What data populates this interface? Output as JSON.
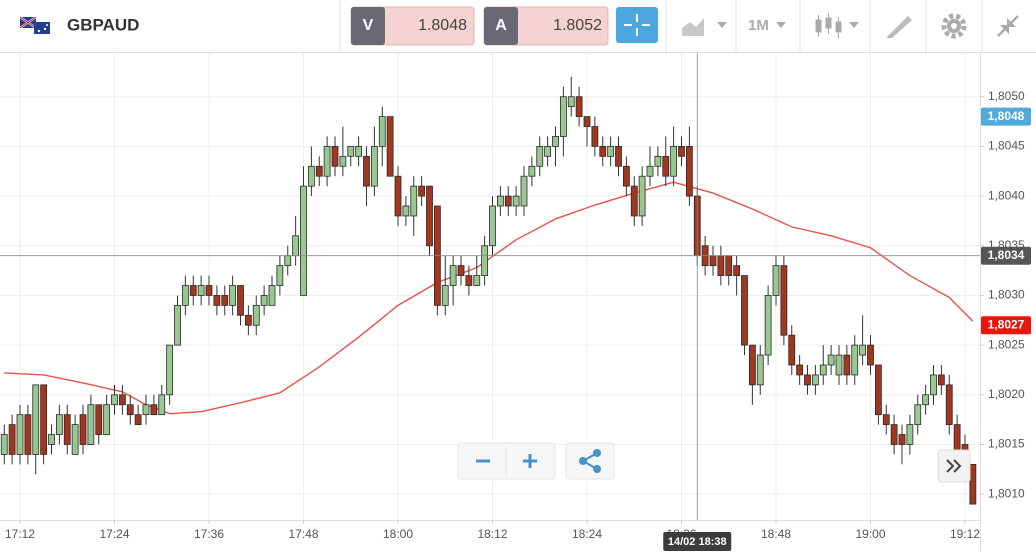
{
  "toolbar": {
    "symbol": "GBPAUD",
    "bid_label": "V",
    "bid": "1.8048",
    "ask_label": "A",
    "ask": "1.8052",
    "timeframe": "1M"
  },
  "chart_data": {
    "type": "candlestick",
    "categories": [
      "17:10",
      "17:11",
      "17:12",
      "17:13",
      "17:14",
      "17:15",
      "17:16",
      "17:17",
      "17:18",
      "17:19",
      "17:20",
      "17:21",
      "17:22",
      "17:23",
      "17:24",
      "17:25",
      "17:26",
      "17:27",
      "17:28",
      "17:29",
      "17:30",
      "17:31",
      "17:32",
      "17:33",
      "17:34",
      "17:35",
      "17:36",
      "17:37",
      "17:38",
      "17:39",
      "17:40",
      "17:41",
      "17:42",
      "17:43",
      "17:44",
      "17:45",
      "17:46",
      "17:47",
      "17:48",
      "17:49",
      "17:50",
      "17:51",
      "17:52",
      "17:53",
      "17:54",
      "17:55",
      "17:56",
      "17:57",
      "17:58",
      "17:59",
      "18:00",
      "18:01",
      "18:02",
      "18:03",
      "18:04",
      "18:05",
      "18:06",
      "18:07",
      "18:08",
      "18:09",
      "18:10",
      "18:11",
      "18:12",
      "18:13",
      "18:14",
      "18:15",
      "18:16",
      "18:17",
      "18:18",
      "18:19",
      "18:20",
      "18:21",
      "18:22",
      "18:23",
      "18:24",
      "18:25",
      "18:26",
      "18:27",
      "18:28",
      "18:29",
      "18:30",
      "18:31",
      "18:32",
      "18:33",
      "18:34",
      "18:35",
      "18:36",
      "18:37",
      "18:38",
      "18:39",
      "18:40",
      "18:41",
      "18:42",
      "18:43",
      "18:44",
      "18:45",
      "18:46",
      "18:47",
      "18:48",
      "18:49",
      "18:50",
      "18:51",
      "18:52",
      "18:53",
      "18:54",
      "18:55",
      "18:56",
      "18:57",
      "18:58",
      "18:59",
      "19:00",
      "19:01",
      "19:02",
      "19:03",
      "19:04",
      "19:05",
      "19:06",
      "19:07",
      "19:08",
      "19:09",
      "19:10",
      "19:11",
      "19:12",
      "19:13"
    ],
    "open": [
      1.8014,
      1.8017,
      1.8014,
      1.8018,
      1.8014,
      1.8021,
      1.8015,
      1.8016,
      1.8018,
      1.8014,
      1.8018,
      1.8015,
      1.8019,
      1.8016,
      1.8019,
      1.802,
      1.8019,
      1.8018,
      1.8018,
      1.8019,
      1.8018,
      1.802,
      1.8025,
      1.8029,
      1.8031,
      1.803,
      1.8031,
      1.803,
      1.803,
      1.8029,
      1.8031,
      1.8028,
      1.8027,
      1.8029,
      1.8029,
      1.8031,
      1.8033,
      1.8034,
      1.803,
      1.8041,
      1.8043,
      1.8042,
      1.8045,
      1.8043,
      1.8044,
      1.8044,
      1.8044,
      1.8041,
      1.8045,
      1.8048,
      1.8042,
      1.8038,
      1.8038,
      1.8041,
      1.8041,
      1.8039,
      1.8029,
      1.8031,
      1.8033,
      1.8032,
      1.8031,
      1.8032,
      1.8035,
      1.8039,
      1.804,
      1.8039,
      1.8039,
      1.8042,
      1.8043,
      1.8044,
      1.8045,
      1.8046,
      1.8049,
      1.805,
      1.8048,
      1.8047,
      1.8045,
      1.8044,
      1.8045,
      1.8043,
      1.8041,
      1.8038,
      1.8042,
      1.8043,
      1.8044,
      1.8042,
      1.8045,
      1.8045,
      1.804,
      1.8035,
      1.8034,
      1.8034,
      1.8034,
      1.8033,
      1.8032,
      1.8025,
      1.8021,
      1.8024,
      1.803,
      1.8033,
      1.8026,
      1.8023,
      1.8022,
      1.8021,
      1.8022,
      1.8023,
      1.8022,
      1.8024,
      1.8022,
      1.8024,
      1.8025,
      1.8023,
      1.8018,
      1.8017,
      1.8016,
      1.8015,
      1.8017,
      1.8019,
      1.802,
      1.8022,
      1.8021,
      1.8017,
      1.8015,
      1.8013
    ],
    "high": [
      1.8017,
      1.8018,
      1.8019,
      1.8019,
      1.8021,
      1.8021,
      1.8017,
      1.8019,
      1.8019,
      1.8018,
      1.8019,
      1.802,
      1.8019,
      1.802,
      1.8021,
      1.8021,
      1.802,
      1.8019,
      1.802,
      1.802,
      1.8021,
      1.8025,
      1.803,
      1.8032,
      1.8032,
      1.8032,
      1.8032,
      1.8031,
      1.8031,
      1.8032,
      1.8031,
      1.8029,
      1.803,
      1.8031,
      1.8032,
      1.8034,
      1.8035,
      1.8038,
      1.8043,
      1.8045,
      1.8044,
      1.8046,
      1.8046,
      1.8047,
      1.8045,
      1.8046,
      1.8045,
      1.8047,
      1.8049,
      1.8048,
      1.8043,
      1.804,
      1.8042,
      1.8042,
      1.8041,
      1.8039,
      1.8034,
      1.8034,
      1.8034,
      1.8033,
      1.8034,
      1.8036,
      1.804,
      1.8041,
      1.8041,
      1.8041,
      1.8043,
      1.8044,
      1.8046,
      1.8046,
      1.8047,
      1.8051,
      1.8052,
      1.8051,
      1.8048,
      1.8048,
      1.8046,
      1.8046,
      1.8046,
      1.8044,
      1.8042,
      1.8043,
      1.8045,
      1.8045,
      1.8046,
      1.8047,
      1.8046,
      1.8047,
      1.8041,
      1.8036,
      1.8035,
      1.8035,
      1.8034,
      1.8034,
      1.8032,
      1.8025,
      1.8025,
      1.8031,
      1.8034,
      1.8034,
      1.8027,
      1.8024,
      1.8023,
      1.8023,
      1.8025,
      1.8025,
      1.8025,
      1.8025,
      1.8026,
      1.8028,
      1.8026,
      1.8023,
      1.8019,
      1.8018,
      1.8017,
      1.8018,
      1.802,
      1.8021,
      1.8023,
      1.8023,
      1.8022,
      1.8018,
      1.8016,
      1.8013
    ],
    "low": [
      1.8013,
      1.8013,
      1.8013,
      1.8013,
      1.8012,
      1.8013,
      1.8014,
      1.8015,
      1.8014,
      1.8014,
      1.8014,
      1.8015,
      1.8015,
      1.8016,
      1.8018,
      1.8018,
      1.8017,
      1.8017,
      1.8017,
      1.8018,
      1.8018,
      1.8019,
      1.8025,
      1.8028,
      1.8029,
      1.8029,
      1.8029,
      1.8028,
      1.8028,
      1.8028,
      1.8027,
      1.8026,
      1.8026,
      1.8028,
      1.8029,
      1.803,
      1.8032,
      1.8033,
      1.803,
      1.804,
      1.8041,
      1.8041,
      1.8042,
      1.8042,
      1.8043,
      1.8043,
      1.8039,
      1.804,
      1.8043,
      1.8042,
      1.8037,
      1.8037,
      1.8036,
      1.8039,
      1.8034,
      1.8028,
      1.8028,
      1.8029,
      1.8031,
      1.803,
      1.8031,
      1.8031,
      1.8034,
      1.8038,
      1.8038,
      1.8038,
      1.8038,
      1.8041,
      1.8042,
      1.8043,
      1.8043,
      1.8044,
      1.8048,
      1.8047,
      1.8045,
      1.8044,
      1.8043,
      1.8043,
      1.8042,
      1.804,
      1.8037,
      1.8037,
      1.8041,
      1.8042,
      1.8041,
      1.8041,
      1.8043,
      1.8039,
      1.8033,
      1.8032,
      1.8032,
      1.8031,
      1.8031,
      1.803,
      1.8024,
      1.8019,
      1.802,
      1.8023,
      1.8029,
      1.8025,
      1.8022,
      1.8021,
      1.802,
      1.802,
      1.8021,
      1.8022,
      1.8021,
      1.8021,
      1.8021,
      1.8023,
      1.8022,
      1.8017,
      1.8016,
      1.8014,
      1.8013,
      1.8014,
      1.8016,
      1.8018,
      1.8019,
      1.802,
      1.8016,
      1.8013,
      1.8013,
      1.8009
    ],
    "close": [
      1.8016,
      1.8014,
      1.8018,
      1.8014,
      1.8021,
      1.8014,
      1.8016,
      1.8018,
      1.8015,
      1.8017,
      1.8015,
      1.8019,
      1.8016,
      1.8019,
      1.802,
      1.8019,
      1.8018,
      1.8017,
      1.8019,
      1.8018,
      1.802,
      1.8025,
      1.8029,
      1.8031,
      1.803,
      1.8031,
      1.803,
      1.8029,
      1.8029,
      1.8031,
      1.8028,
      1.8027,
      1.8029,
      1.803,
      1.8031,
      1.8033,
      1.8034,
      1.8036,
      1.8041,
      1.8043,
      1.8042,
      1.8045,
      1.8043,
      1.8044,
      1.8045,
      1.8045,
      1.8041,
      1.8045,
      1.8048,
      1.8042,
      1.8038,
      1.8039,
      1.8041,
      1.804,
      1.8035,
      1.8029,
      1.8031,
      1.8033,
      1.8032,
      1.8031,
      1.8032,
      1.8035,
      1.8039,
      1.804,
      1.8039,
      1.804,
      1.8042,
      1.8043,
      1.8045,
      1.8045,
      1.8046,
      1.805,
      1.805,
      1.8048,
      1.8047,
      1.8045,
      1.8044,
      1.8045,
      1.8043,
      1.8041,
      1.8038,
      1.8042,
      1.8043,
      1.8044,
      1.8042,
      1.8045,
      1.8044,
      1.804,
      1.8034,
      1.8033,
      1.8033,
      1.8032,
      1.8032,
      1.8032,
      1.8025,
      1.8021,
      1.8024,
      1.803,
      1.8033,
      1.8026,
      1.8023,
      1.8022,
      1.8021,
      1.8022,
      1.8023,
      1.8024,
      1.8024,
      1.8022,
      1.8025,
      1.8025,
      1.8023,
      1.8018,
      1.8017,
      1.8015,
      1.8015,
      1.8017,
      1.8019,
      1.802,
      1.8022,
      1.8021,
      1.8017,
      1.8014,
      1.8014,
      1.8009
    ],
    "up_color": "#98c88f",
    "down_color": "#a2361f",
    "moving_average": {
      "color": "#e8524a",
      "x": [
        "17:10",
        "17:15",
        "17:20",
        "17:25",
        "17:28",
        "17:31",
        "17:35",
        "17:40",
        "17:45",
        "17:50",
        "17:55",
        "18:00",
        "18:05",
        "18:10",
        "18:15",
        "18:20",
        "18:25",
        "18:30",
        "18:35",
        "18:40",
        "18:45",
        "18:50",
        "18:55",
        "19:00",
        "19:05",
        "19:10",
        "19:13"
      ],
      "values": [
        1.80222,
        1.8022,
        1.80212,
        1.80203,
        1.8019,
        1.80181,
        1.80183,
        1.80192,
        1.80202,
        1.80228,
        1.80258,
        1.8029,
        1.80313,
        1.80328,
        1.80356,
        1.80377,
        1.80391,
        1.80403,
        1.80414,
        1.80403,
        1.80387,
        1.80369,
        1.8036,
        1.80348,
        1.8032,
        1.80298,
        1.80274
      ]
    },
    "ylim": [
      1.80074,
      1.80544
    ],
    "yticks": [
      {
        "value": 1.801,
        "label": "1,8010"
      },
      {
        "value": 1.8015,
        "label": "1,8015"
      },
      {
        "value": 1.802,
        "label": "1,8020"
      },
      {
        "value": 1.8025,
        "label": "1,8025"
      },
      {
        "value": 1.803,
        "label": "1,8030"
      },
      {
        "value": 1.8035,
        "label": "1,8035"
      },
      {
        "value": 1.804,
        "label": "1,8040"
      },
      {
        "value": 1.8045,
        "label": "1,8045"
      },
      {
        "value": 1.805,
        "label": "1,8050"
      }
    ],
    "xticks": [
      "17:12",
      "17:24",
      "17:36",
      "17:48",
      "18:00",
      "18:12",
      "18:24",
      "18:36",
      "18:48",
      "19:00",
      "19:12"
    ],
    "grid": true,
    "price_tags": [
      {
        "value": 1.8048,
        "label": "1,8048",
        "color": "#4fa9d9"
      },
      {
        "value": 1.8027,
        "label": "1,8027",
        "color": "#e8160c"
      }
    ],
    "crosshair": {
      "value": 1.8034,
      "label": "1,8034",
      "time_label": "14/02 18:38"
    }
  }
}
